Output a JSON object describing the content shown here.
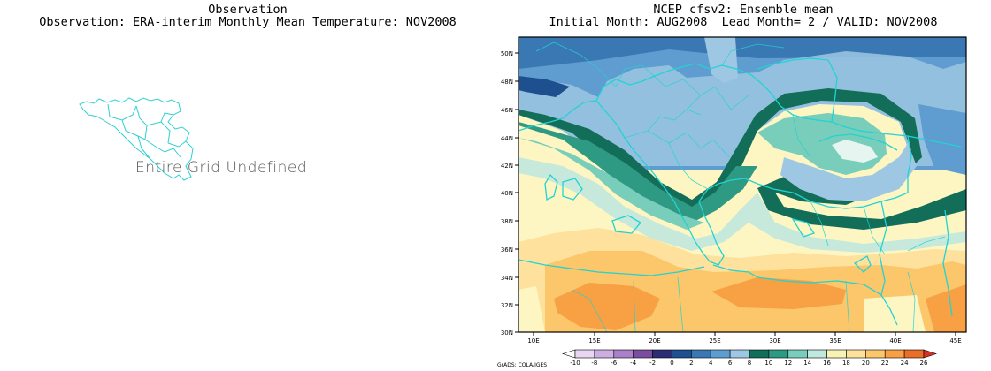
{
  "left": {
    "title_line1": "Observation",
    "title_line2": "Observation: ERA-interim Monthly Mean Temperature: NOV2008",
    "message": "Entire Grid Undefined"
  },
  "right": {
    "title_line1": "NCEP cfsv2: Ensemble mean",
    "title_line2": "Initial Month: AUG2008  Lead Month= 2 / VALID: NOV2008",
    "lat_labels": [
      "50N",
      "48N",
      "46N",
      "44N",
      "42N",
      "40N",
      "38N",
      "36N",
      "34N",
      "32N",
      "30N"
    ],
    "lon_labels": [
      "10E",
      "15E",
      "20E",
      "25E",
      "30E",
      "35E",
      "40E",
      "45E"
    ],
    "colorbar": {
      "labels": [
        "-10",
        "-8",
        "-6",
        "-4",
        "-2",
        "0",
        "2",
        "4",
        "6",
        "8",
        "10",
        "12",
        "14",
        "16",
        "18",
        "20",
        "22",
        "24",
        "26"
      ],
      "colors": [
        "#ffffff",
        "#e8d6f2",
        "#cdaee3",
        "#aa80c8",
        "#7a4d9e",
        "#2b2e73",
        "#1e4f8f",
        "#3a78b4",
        "#5f9dd0",
        "#9ec7e3",
        "#126e58",
        "#2f9a84",
        "#78cdbb",
        "#c0e8de",
        "#f7f3b5",
        "#fde19c",
        "#fcc66a",
        "#f8a044",
        "#ea6d2a",
        "#d73027"
      ]
    },
    "credit": "GrADS: COLA/IGES"
  }
}
